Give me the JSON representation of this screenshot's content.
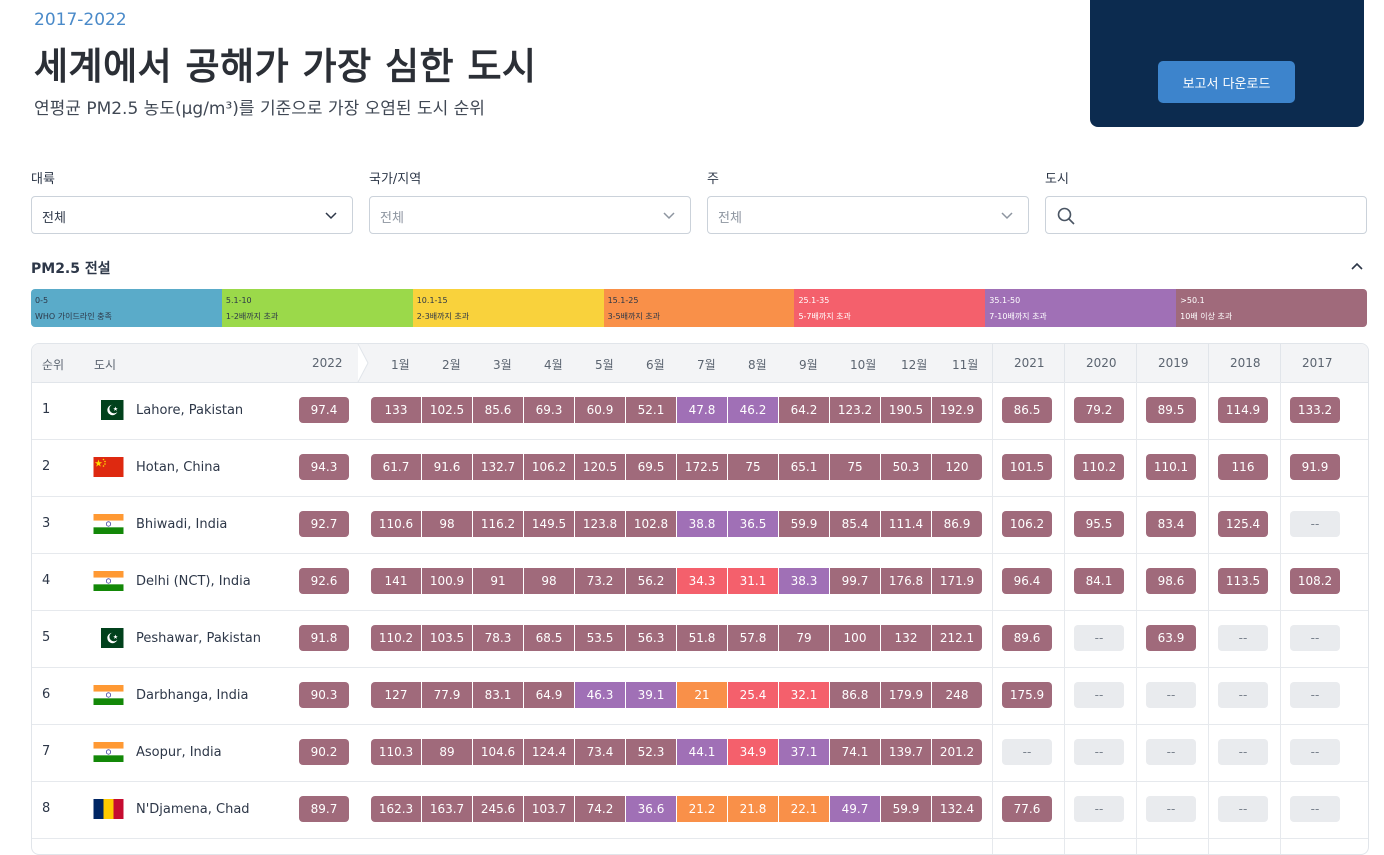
{
  "header": {
    "years": "2017-2022",
    "title": "세계에서 공해가 가장 심한 도시",
    "subtitle": "연평균 PM2.5 농도(μg/m³)를 기준으로 가장 오염된 도시 순위",
    "download_label": "보고서 다운로드"
  },
  "filters": {
    "continent": {
      "label": "대륙",
      "value": "전체"
    },
    "country": {
      "label": "국가/지역",
      "value": "전체"
    },
    "state": {
      "label": "주",
      "value": "전체"
    },
    "city": {
      "label": "도시",
      "value": ""
    }
  },
  "legend": {
    "title": "PM2.5 전설",
    "items": [
      {
        "range": "0-5",
        "desc": "WHO 가이드라인 충족",
        "color": "#5aabc9"
      },
      {
        "range": "5.1-10",
        "desc": "1-2배까지 초과",
        "color": "#9bd94a"
      },
      {
        "range": "10.1-15",
        "desc": "2-3배까지 초과",
        "color": "#f9d23c"
      },
      {
        "range": "15.1-25",
        "desc": "3-5배까지 초과",
        "color": "#f99049"
      },
      {
        "range": "25.1-35",
        "desc": "5-7배까지 초과",
        "color": "#f4606c"
      },
      {
        "range": "35.1-50",
        "desc": "7-10배까지 초과",
        "color": "#a070b6"
      },
      {
        "range": ">50.1",
        "desc": "10배 이상 초과",
        "color": "#a06a7b"
      }
    ]
  },
  "table": {
    "headers": {
      "rank": "순위",
      "city": "도시",
      "y2022": "2022",
      "months": [
        "1월",
        "2월",
        "3월",
        "4월",
        "5월",
        "6월",
        "7월",
        "8월",
        "9월",
        "10월",
        "12월",
        "11월"
      ],
      "years": [
        "2021",
        "2020",
        "2019",
        "2018",
        "2017"
      ]
    },
    "rows": [
      {
        "rank": "1",
        "city": "Lahore, Pakistan",
        "flag": "pakistan-flag",
        "y2022": "97.4",
        "months": [
          "133",
          "102.5",
          "85.6",
          "69.3",
          "60.9",
          "52.1",
          "47.8",
          "46.2",
          "64.2",
          "123.2",
          "190.5",
          "192.9"
        ],
        "years": [
          "86.5",
          "79.2",
          "89.5",
          "114.9",
          "133.2"
        ]
      },
      {
        "rank": "2",
        "city": "Hotan, China",
        "flag": "china-flag",
        "y2022": "94.3",
        "months": [
          "61.7",
          "91.6",
          "132.7",
          "106.2",
          "120.5",
          "69.5",
          "172.5",
          "75",
          "65.1",
          "75",
          "50.3",
          "120"
        ],
        "years": [
          "101.5",
          "110.2",
          "110.1",
          "116",
          "91.9"
        ]
      },
      {
        "rank": "3",
        "city": "Bhiwadi, India",
        "flag": "india-flag",
        "y2022": "92.7",
        "months": [
          "110.6",
          "98",
          "116.2",
          "149.5",
          "123.8",
          "102.8",
          "38.8",
          "36.5",
          "59.9",
          "85.4",
          "111.4",
          "86.9"
        ],
        "years": [
          "106.2",
          "95.5",
          "83.4",
          "125.4",
          "--"
        ]
      },
      {
        "rank": "4",
        "city": "Delhi (NCT), India",
        "flag": "india-flag",
        "y2022": "92.6",
        "months": [
          "141",
          "100.9",
          "91",
          "98",
          "73.2",
          "56.2",
          "34.3",
          "31.1",
          "38.3",
          "99.7",
          "176.8",
          "171.9"
        ],
        "years": [
          "96.4",
          "84.1",
          "98.6",
          "113.5",
          "108.2"
        ]
      },
      {
        "rank": "5",
        "city": "Peshawar, Pakistan",
        "flag": "pakistan-flag",
        "y2022": "91.8",
        "months": [
          "110.2",
          "103.5",
          "78.3",
          "68.5",
          "53.5",
          "56.3",
          "51.8",
          "57.8",
          "79",
          "100",
          "132",
          "212.1"
        ],
        "years": [
          "89.6",
          "--",
          "63.9",
          "--",
          "--"
        ]
      },
      {
        "rank": "6",
        "city": "Darbhanga, India",
        "flag": "india-flag",
        "y2022": "90.3",
        "months": [
          "127",
          "77.9",
          "83.1",
          "64.9",
          "46.3",
          "39.1",
          "21",
          "25.4",
          "32.1",
          "86.8",
          "179.9",
          "248"
        ],
        "years": [
          "175.9",
          "--",
          "--",
          "--",
          "--"
        ]
      },
      {
        "rank": "7",
        "city": "Asopur, India",
        "flag": "india-flag",
        "y2022": "90.2",
        "months": [
          "110.3",
          "89",
          "104.6",
          "124.4",
          "73.4",
          "52.3",
          "44.1",
          "34.9",
          "37.1",
          "74.1",
          "139.7",
          "201.2"
        ],
        "years": [
          "--",
          "--",
          "--",
          "--",
          "--"
        ]
      },
      {
        "rank": "8",
        "city": "N'Djamena, Chad",
        "flag": "chad-flag",
        "y2022": "89.7",
        "months": [
          "162.3",
          "163.7",
          "245.6",
          "103.7",
          "74.2",
          "36.6",
          "21.2",
          "21.8",
          "22.1",
          "49.7",
          "59.9",
          "132.4"
        ],
        "years": [
          "77.6",
          "--",
          "--",
          "--",
          "--"
        ]
      }
    ]
  }
}
